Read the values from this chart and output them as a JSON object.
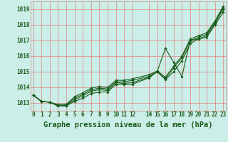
{
  "title": "Graphe pression niveau de la mer (hPa)",
  "background_color": "#cceee8",
  "grid_color": "#e08080",
  "line_color": "#1a5c1a",
  "x_hours": [
    0,
    1,
    2,
    3,
    4,
    5,
    6,
    7,
    8,
    9,
    10,
    11,
    12,
    14,
    15,
    16,
    17,
    18,
    19,
    20,
    21,
    22,
    23
  ],
  "series": [
    [
      1013.5,
      1013.1,
      1013.05,
      1012.8,
      1012.82,
      1013.1,
      1013.3,
      1013.6,
      1013.7,
      1013.7,
      1014.2,
      1014.2,
      1014.2,
      1014.6,
      1015.0,
      1016.5,
      1015.6,
      1014.7,
      1017.0,
      1017.1,
      1017.2,
      1018.0,
      1018.8
    ],
    [
      1013.5,
      1013.1,
      1013.05,
      1012.82,
      1012.84,
      1013.2,
      1013.45,
      1013.75,
      1013.85,
      1013.8,
      1014.3,
      1014.25,
      1014.3,
      1014.65,
      1015.0,
      1014.5,
      1015.0,
      1015.7,
      1016.8,
      1017.1,
      1017.3,
      1018.1,
      1019.0
    ],
    [
      1013.5,
      1013.1,
      1013.05,
      1012.85,
      1012.87,
      1013.3,
      1013.55,
      1013.85,
      1013.95,
      1013.9,
      1014.35,
      1014.35,
      1014.45,
      1014.7,
      1015.0,
      1014.55,
      1015.25,
      1015.9,
      1017.0,
      1017.2,
      1017.4,
      1018.2,
      1019.1
    ],
    [
      1013.5,
      1013.1,
      1013.05,
      1012.9,
      1012.92,
      1013.4,
      1013.65,
      1013.95,
      1014.05,
      1014.0,
      1014.45,
      1014.45,
      1014.55,
      1014.8,
      1015.05,
      1014.65,
      1015.35,
      1016.0,
      1017.1,
      1017.3,
      1017.5,
      1018.25,
      1019.2
    ]
  ],
  "ylim": [
    1012.5,
    1019.5
  ],
  "yticks": [
    1013,
    1014,
    1015,
    1016,
    1017,
    1018,
    1019
  ],
  "xticks": [
    0,
    1,
    2,
    3,
    4,
    5,
    6,
    7,
    8,
    9,
    10,
    11,
    12,
    14,
    15,
    16,
    17,
    18,
    19,
    20,
    21,
    22,
    23
  ],
  "xlim": [
    -0.3,
    23.3
  ],
  "tick_fontsize": 5.5,
  "xlabel_fontsize": 7.5
}
